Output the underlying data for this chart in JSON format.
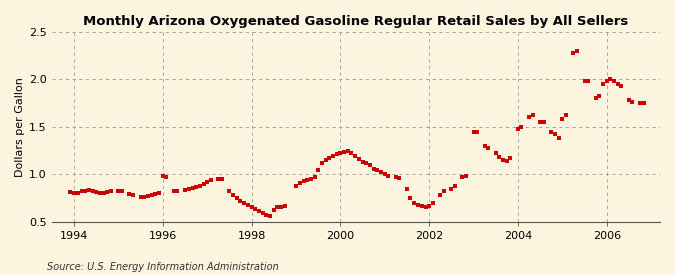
{
  "title": "Monthly Arizona Oxygenated Gasoline Regular Retail Sales by All Sellers",
  "ylabel": "Dollars per Gallon",
  "source": "Source: U.S. Energy Information Administration",
  "background_color": "#fdf5e0",
  "plot_bg_color": "#fdf5e0",
  "marker_color": "#cc0000",
  "xlim_start": 1993.5,
  "xlim_end": 2007.2,
  "ylim": [
    0.5,
    2.5
  ],
  "yticks": [
    0.5,
    1.0,
    1.5,
    2.0,
    2.5
  ],
  "xticks": [
    1994,
    1996,
    1998,
    2000,
    2002,
    2004,
    2006
  ],
  "title_fontsize": 9.5,
  "axis_fontsize": 8,
  "source_fontsize": 7,
  "data": [
    [
      1993.92,
      0.81
    ],
    [
      1994.0,
      0.8
    ],
    [
      1994.08,
      0.8
    ],
    [
      1994.17,
      0.82
    ],
    [
      1994.25,
      0.82
    ],
    [
      1994.33,
      0.83
    ],
    [
      1994.42,
      0.82
    ],
    [
      1994.5,
      0.81
    ],
    [
      1994.58,
      0.8
    ],
    [
      1994.67,
      0.8
    ],
    [
      1994.75,
      0.81
    ],
    [
      1994.83,
      0.82
    ],
    [
      1995.0,
      0.82
    ],
    [
      1995.08,
      0.82
    ],
    [
      1995.25,
      0.79
    ],
    [
      1995.33,
      0.78
    ],
    [
      1995.5,
      0.76
    ],
    [
      1995.58,
      0.76
    ],
    [
      1995.67,
      0.77
    ],
    [
      1995.75,
      0.78
    ],
    [
      1995.83,
      0.79
    ],
    [
      1995.92,
      0.8
    ],
    [
      1996.0,
      0.98
    ],
    [
      1996.08,
      0.97
    ],
    [
      1996.25,
      0.82
    ],
    [
      1996.33,
      0.82
    ],
    [
      1996.5,
      0.83
    ],
    [
      1996.58,
      0.84
    ],
    [
      1996.67,
      0.86
    ],
    [
      1996.75,
      0.87
    ],
    [
      1996.83,
      0.88
    ],
    [
      1996.92,
      0.9
    ],
    [
      1997.0,
      0.92
    ],
    [
      1997.08,
      0.94
    ],
    [
      1997.25,
      0.95
    ],
    [
      1997.33,
      0.95
    ],
    [
      1997.5,
      0.82
    ],
    [
      1997.58,
      0.78
    ],
    [
      1997.67,
      0.75
    ],
    [
      1997.75,
      0.72
    ],
    [
      1997.83,
      0.7
    ],
    [
      1997.92,
      0.68
    ],
    [
      1998.0,
      0.65
    ],
    [
      1998.08,
      0.63
    ],
    [
      1998.17,
      0.61
    ],
    [
      1998.25,
      0.59
    ],
    [
      1998.33,
      0.57
    ],
    [
      1998.42,
      0.56
    ],
    [
      1998.5,
      0.62
    ],
    [
      1998.58,
      0.65
    ],
    [
      1998.67,
      0.66
    ],
    [
      1998.75,
      0.67
    ],
    [
      1999.0,
      0.88
    ],
    [
      1999.08,
      0.91
    ],
    [
      1999.17,
      0.93
    ],
    [
      1999.25,
      0.94
    ],
    [
      1999.33,
      0.95
    ],
    [
      1999.42,
      0.97
    ],
    [
      1999.5,
      1.05
    ],
    [
      1999.58,
      1.12
    ],
    [
      1999.67,
      1.15
    ],
    [
      1999.75,
      1.17
    ],
    [
      1999.83,
      1.19
    ],
    [
      1999.92,
      1.21
    ],
    [
      2000.0,
      1.22
    ],
    [
      2000.08,
      1.24
    ],
    [
      2000.17,
      1.25
    ],
    [
      2000.25,
      1.22
    ],
    [
      2000.33,
      1.19
    ],
    [
      2000.42,
      1.16
    ],
    [
      2000.5,
      1.13
    ],
    [
      2000.58,
      1.12
    ],
    [
      2000.67,
      1.1
    ],
    [
      2000.75,
      1.06
    ],
    [
      2000.83,
      1.05
    ],
    [
      2000.92,
      1.02
    ],
    [
      2001.0,
      1.0
    ],
    [
      2001.08,
      0.98
    ],
    [
      2001.25,
      0.97
    ],
    [
      2001.33,
      0.96
    ],
    [
      2001.5,
      0.85
    ],
    [
      2001.58,
      0.75
    ],
    [
      2001.67,
      0.7
    ],
    [
      2001.75,
      0.68
    ],
    [
      2001.83,
      0.67
    ],
    [
      2001.92,
      0.66
    ],
    [
      2002.0,
      0.67
    ],
    [
      2002.08,
      0.7
    ],
    [
      2002.25,
      0.78
    ],
    [
      2002.33,
      0.82
    ],
    [
      2002.5,
      0.85
    ],
    [
      2002.58,
      0.88
    ],
    [
      2002.75,
      0.97
    ],
    [
      2002.83,
      0.98
    ],
    [
      2003.0,
      1.45
    ],
    [
      2003.08,
      1.45
    ],
    [
      2003.25,
      1.3
    ],
    [
      2003.33,
      1.28
    ],
    [
      2003.5,
      1.22
    ],
    [
      2003.58,
      1.18
    ],
    [
      2003.67,
      1.15
    ],
    [
      2003.75,
      1.14
    ],
    [
      2003.83,
      1.17
    ],
    [
      2004.0,
      1.48
    ],
    [
      2004.08,
      1.5
    ],
    [
      2004.25,
      1.6
    ],
    [
      2004.33,
      1.62
    ],
    [
      2004.5,
      1.55
    ],
    [
      2004.58,
      1.55
    ],
    [
      2004.75,
      1.45
    ],
    [
      2004.83,
      1.42
    ],
    [
      2004.92,
      1.38
    ],
    [
      2005.0,
      1.58
    ],
    [
      2005.08,
      1.62
    ],
    [
      2005.25,
      2.28
    ],
    [
      2005.33,
      2.3
    ],
    [
      2005.5,
      1.98
    ],
    [
      2005.58,
      1.98
    ],
    [
      2005.75,
      1.8
    ],
    [
      2005.83,
      1.82
    ],
    [
      2005.92,
      1.95
    ],
    [
      2006.0,
      1.98
    ],
    [
      2006.08,
      2.0
    ],
    [
      2006.17,
      1.98
    ],
    [
      2006.25,
      1.95
    ],
    [
      2006.33,
      1.93
    ],
    [
      2006.5,
      1.78
    ],
    [
      2006.58,
      1.76
    ],
    [
      2006.75,
      1.75
    ],
    [
      2006.83,
      1.75
    ]
  ]
}
